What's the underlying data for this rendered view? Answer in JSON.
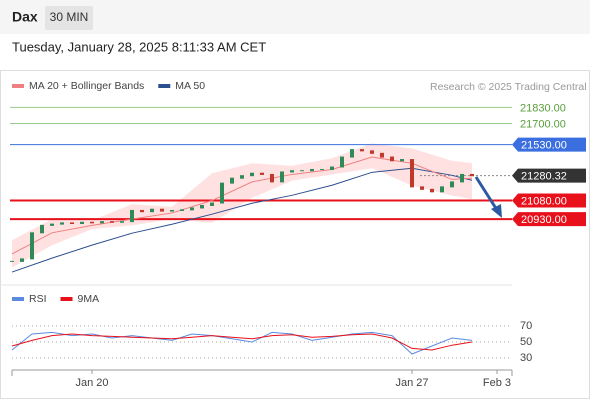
{
  "header": {
    "symbol": "Dax",
    "interval": "30 MIN",
    "datetime": "Tuesday, January 28, 2025 8:11:33 AM CET"
  },
  "chart_data": [
    {
      "type": "candlestick",
      "legend": [
        {
          "name": "MA 20 + Bollinger Bands",
          "color": "#f08080"
        },
        {
          "name": "MA 50",
          "color": "#2c4f8f"
        }
      ],
      "source": "Research © 2025 Trading Central",
      "xlim": [
        -1.2,
        49.8
      ],
      "xticks": [
        {
          "value": 8,
          "label": "Jan 20"
        },
        {
          "value": 40,
          "label": "Jan 27"
        },
        {
          "value": 48.5,
          "label": "Feb 3"
        }
      ],
      "ylim": [
        20440,
        21970
      ],
      "closes": [
        20590,
        20610,
        20820,
        20880,
        20890,
        20900,
        20895,
        20905,
        20900,
        20910,
        20905,
        20910,
        21000,
        20990,
        21010,
        20995,
        21000,
        21005,
        21020,
        21040,
        21060,
        21220,
        21260,
        21280,
        21300,
        21290,
        21230,
        21310,
        21320,
        21320,
        21330,
        21330,
        21350,
        21430,
        21490,
        21480,
        21460,
        21430,
        21400,
        21410,
        21190,
        21170,
        21150,
        21190,
        21230,
        21290,
        21280
      ],
      "up_color": "#2e8b57",
      "down_color": "#c0392b",
      "x": [
        0,
        4,
        8,
        12,
        16,
        20,
        24,
        28,
        32,
        36,
        40,
        44,
        46
      ],
      "series": [
        {
          "name": "MA 50",
          "color": "#2c4f8f",
          "values": [
            20504,
            20616,
            20721,
            20817,
            20889,
            20970,
            21058,
            21122,
            21203,
            21307,
            21340,
            21283,
            21243
          ]
        },
        {
          "name": "MA 20",
          "color": "#f08080",
          "values": [
            20650,
            20820,
            20880,
            20930,
            20980,
            21080,
            21230,
            21290,
            21330,
            21430,
            21380,
            21250,
            21260
          ]
        }
      ],
      "bands": {
        "color": "#ffc8c8",
        "upper": [
          20760,
          20930,
          20920,
          21050,
          21030,
          21300,
          21380,
          21360,
          21420,
          21540,
          21500,
          21400,
          21380
        ],
        "lower": [
          20540,
          20720,
          20850,
          20880,
          20930,
          20900,
          21100,
          21240,
          21290,
          21340,
          21200,
          21120,
          21090
        ]
      },
      "levels": [
        {
          "value": 21830,
          "label": "21830.00",
          "color": "#9ccc8c",
          "style": "text"
        },
        {
          "value": 21700,
          "label": "21700.00",
          "color": "#9ccc8c",
          "style": "text"
        },
        {
          "value": 21530,
          "label": "21530.00",
          "color": "#3b6fe0",
          "style": "box"
        },
        {
          "value": 21280,
          "label": "21280.32",
          "color": "#333333",
          "style": "box"
        },
        {
          "value": 21080,
          "label": "21080.00",
          "color": "#e8101a",
          "style": "box"
        },
        {
          "value": 20930,
          "label": "20930.00",
          "color": "#e8101a",
          "style": "box"
        }
      ]
    },
    {
      "type": "line",
      "legend": [
        {
          "name": "RSI",
          "color": "#5b8be0"
        },
        {
          "name": "9MA",
          "color": "#e8101a"
        }
      ],
      "xlim": [
        -1.2,
        49.8
      ],
      "ylim": [
        12.5,
        90
      ],
      "yticks": [
        70,
        50,
        30
      ],
      "x": [
        0,
        2,
        4,
        6,
        8,
        10,
        12,
        14,
        16,
        18,
        20,
        22,
        24,
        26,
        28,
        30,
        32,
        34,
        36,
        38,
        40,
        42,
        44,
        46
      ],
      "series": [
        {
          "name": "RSI",
          "color": "#5b8be0",
          "values": [
            40,
            60,
            62,
            58,
            60,
            55,
            58,
            55,
            52,
            60,
            58,
            54,
            50,
            62,
            60,
            52,
            56,
            60,
            62,
            58,
            35,
            45,
            55,
            52
          ]
        },
        {
          "name": "9MA",
          "color": "#e8101a",
          "values": [
            45,
            52,
            58,
            60,
            58,
            57,
            56,
            55,
            54,
            56,
            58,
            56,
            54,
            58,
            59,
            56,
            57,
            59,
            60,
            55,
            42,
            40,
            46,
            50
          ]
        }
      ]
    }
  ]
}
